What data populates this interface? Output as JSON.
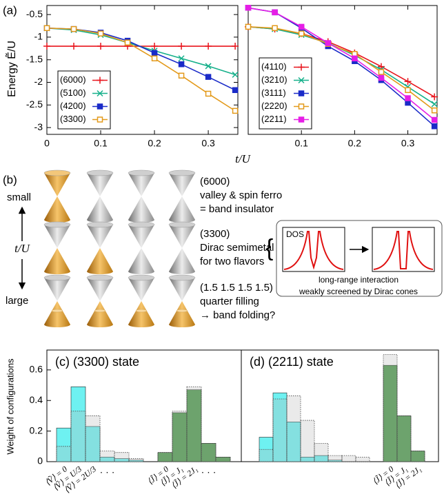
{
  "chart_data": [
    {
      "type": "line",
      "panel_label": "(a)",
      "ylabel": "Energy Ẽ/U",
      "xlabel": "t/U",
      "x": [
        0,
        0.05,
        0.1,
        0.15,
        0.2,
        0.25,
        0.3,
        0.35
      ],
      "xlim": [
        0,
        0.355
      ],
      "ylim": [
        -3.15,
        -0.3
      ],
      "xticks": [
        0,
        0.1,
        0.2,
        0.3
      ],
      "yticks": [
        -0.5,
        -1,
        -1.5,
        -2,
        -2.5,
        -3
      ],
      "legend": "lower left",
      "series": [
        {
          "name": "(6000)",
          "color": "#e8141c",
          "marker": "plus",
          "values": [
            -1.2,
            -1.2,
            -1.2,
            -1.2,
            -1.2,
            -1.2,
            -1.2,
            -1.2
          ]
        },
        {
          "name": "(5100)",
          "color": "#15b08a",
          "marker": "cross",
          "values": [
            -0.8,
            -0.84,
            -0.95,
            -1.12,
            -1.3,
            -1.47,
            -1.64,
            -1.83
          ]
        },
        {
          "name": "(4200)",
          "color": "#1a2bc8",
          "marker": "square",
          "values": [
            -0.8,
            -0.82,
            -0.9,
            -1.08,
            -1.35,
            -1.6,
            -1.88,
            -2.17
          ]
        },
        {
          "name": "(3300)",
          "color": "#e39a1b",
          "marker": "open-square",
          "values": [
            -0.8,
            -0.82,
            -0.92,
            -1.12,
            -1.47,
            -1.85,
            -2.25,
            -2.63
          ]
        }
      ]
    },
    {
      "type": "line",
      "x": [
        0,
        0.05,
        0.1,
        0.15,
        0.2,
        0.25,
        0.3,
        0.35
      ],
      "xlim": [
        0,
        0.355
      ],
      "ylim": [
        -3.15,
        -0.3
      ],
      "xticks": [
        0.1,
        0.2,
        0.3
      ],
      "legend": "lower left",
      "series": [
        {
          "name": "(4110)",
          "color": "#e8141c",
          "marker": "plus",
          "values": [
            -0.77,
            -0.82,
            -0.92,
            -1.1,
            -1.35,
            -1.65,
            -1.98,
            -2.32
          ]
        },
        {
          "name": "(3210)",
          "color": "#15b08a",
          "marker": "cross",
          "values": [
            -0.77,
            -0.82,
            -0.95,
            -1.13,
            -1.4,
            -1.72,
            -2.1,
            -2.48
          ]
        },
        {
          "name": "(3111)",
          "color": "#1a2bc8",
          "marker": "square",
          "values": [
            -0.35,
            -0.45,
            -0.8,
            -1.2,
            -1.53,
            -1.95,
            -2.45,
            -2.97
          ]
        },
        {
          "name": "(2220)",
          "color": "#e39a1b",
          "marker": "open-square",
          "values": [
            -0.77,
            -0.8,
            -0.92,
            -1.15,
            -1.37,
            -1.77,
            -2.17,
            -2.62
          ]
        },
        {
          "name": "(2211)",
          "color": "#e61ee6",
          "marker": "square",
          "values": [
            -0.35,
            -0.45,
            -0.77,
            -1.13,
            -1.47,
            -1.9,
            -2.35,
            -2.83
          ]
        }
      ]
    },
    {
      "type": "bar",
      "title": "(c) (3300) state",
      "ylabel": "Weight of configurations",
      "categories": [
        "⟨Ṽ⟩ = 0",
        "⟨Ṽ⟩ = U/3",
        "⟨Ṽ⟩ = 2U/3",
        "· · ·",
        null,
        null,
        null,
        "⟨J̃⟩ = 0",
        "⟨J̃⟩ = J₁",
        "⟨J̃⟩ = 2J₁",
        "· · ·",
        null
      ],
      "ylim": [
        0,
        0.73
      ],
      "yticks": [
        0,
        0.2,
        0.4,
        0.6
      ],
      "series": [
        {
          "color": "#5ef0f0",
          "values": [
            0.22,
            0.49,
            0.23,
            0.03,
            0.02,
            0.01,
            null,
            null,
            null,
            null,
            null,
            null
          ]
        },
        {
          "color": "#3a8f3a",
          "values": [
            null,
            null,
            null,
            null,
            null,
            null,
            null,
            0.06,
            0.32,
            0.47,
            0.12,
            0.03
          ]
        },
        {
          "color": "#b8b8b8",
          "style": "dotted",
          "values": [
            0.1,
            0.33,
            0.3,
            0.07,
            0.06,
            0.02,
            null,
            0.06,
            0.33,
            0.49,
            0.12,
            0.03
          ]
        }
      ]
    },
    {
      "type": "bar",
      "title": "(d) (2211) state",
      "categories": [
        null,
        null,
        null,
        null,
        null,
        null,
        null,
        null,
        null,
        "⟨J̃⟩ = 0",
        "⟨J̃⟩ = J₁",
        "⟨J̃⟩ = 2J₁"
      ],
      "ylim": [
        0,
        0.73
      ],
      "series": [
        {
          "color": "#5ef0f0",
          "values": [
            0.16,
            0.45,
            0.26,
            0.03,
            0.04,
            0.01,
            null,
            null,
            null,
            null,
            null,
            null
          ]
        },
        {
          "color": "#3a8f3a",
          "values": [
            null,
            null,
            null,
            null,
            null,
            null,
            null,
            null,
            null,
            0.63,
            0.3,
            0.07
          ]
        },
        {
          "color": "#b8b8b8",
          "style": "dotted",
          "values": [
            0.08,
            0.41,
            0.43,
            0.27,
            0.12,
            0.04,
            0.04,
            0.03,
            null,
            0.7,
            0.3,
            0.07
          ]
        }
      ]
    }
  ],
  "diagram": {
    "label": "(b)",
    "small": "small",
    "large": "large",
    "axis": "t/U",
    "rows": [
      [
        "(6000)",
        "valley & spin ferro",
        "= band insulator"
      ],
      [
        "(3300)",
        "Dirac semimetal",
        "for two flavors"
      ],
      [
        "(1.5 1.5 1.5 1.5)",
        "quarter filling",
        "→ band folding?"
      ]
    ],
    "inset": {
      "dos": "DOS",
      "caption": [
        "long-range interaction",
        "weakly screened by Dirac cones"
      ]
    }
  }
}
